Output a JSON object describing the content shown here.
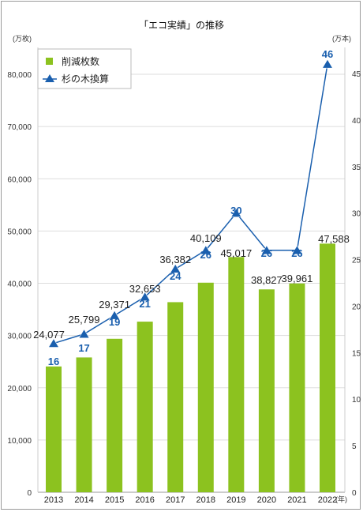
{
  "chart_data": {
    "type": "bar",
    "title": "「エコ実績」の推移",
    "x_unit": "(年)",
    "categories": [
      "2013",
      "2014",
      "2015",
      "2016",
      "2017",
      "2018",
      "2019",
      "2020",
      "2021",
      "2022"
    ],
    "series": [
      {
        "name": "削減枚数",
        "kind": "bar",
        "axis": "left",
        "color": "#8cc21f",
        "values": [
          24077,
          25799,
          29371,
          32653,
          36382,
          40109,
          45017,
          38827,
          39961,
          47588
        ],
        "labels": [
          "24,077",
          "25,799",
          "29,371",
          "32,653",
          "36,382",
          "40,109",
          "45,017",
          "38,827",
          "39,961",
          "47,588"
        ]
      },
      {
        "name": "杉の木換算",
        "kind": "line",
        "axis": "right",
        "color": "#1a5fae",
        "marker": "triangle",
        "values": [
          16,
          17,
          19,
          21,
          24,
          26,
          30,
          26,
          26,
          46
        ],
        "labels": [
          "16",
          "17",
          "19",
          "21",
          "24",
          "26",
          "30",
          "26",
          "26",
          "46"
        ]
      }
    ],
    "y_left": {
      "unit": "(万枚)",
      "min": 0,
      "max": 80000,
      "ticks": [
        0,
        10000,
        20000,
        30000,
        40000,
        50000,
        60000,
        70000,
        80000
      ],
      "tick_labels": [
        "0",
        "10,000",
        "20,000",
        "30,000",
        "40,000",
        "50,000",
        "60,000",
        "70,000",
        "80,000"
      ]
    },
    "y_right": {
      "unit": "(万本)",
      "min": 0,
      "max": 46,
      "ticks": [
        0,
        5,
        10,
        15,
        20,
        25,
        30,
        35,
        40,
        45
      ],
      "tick_labels": [
        "0",
        "5",
        "10",
        "15",
        "20",
        "25",
        "30",
        "35",
        "40",
        "45"
      ]
    },
    "grid": true,
    "legend": "top-left"
  }
}
